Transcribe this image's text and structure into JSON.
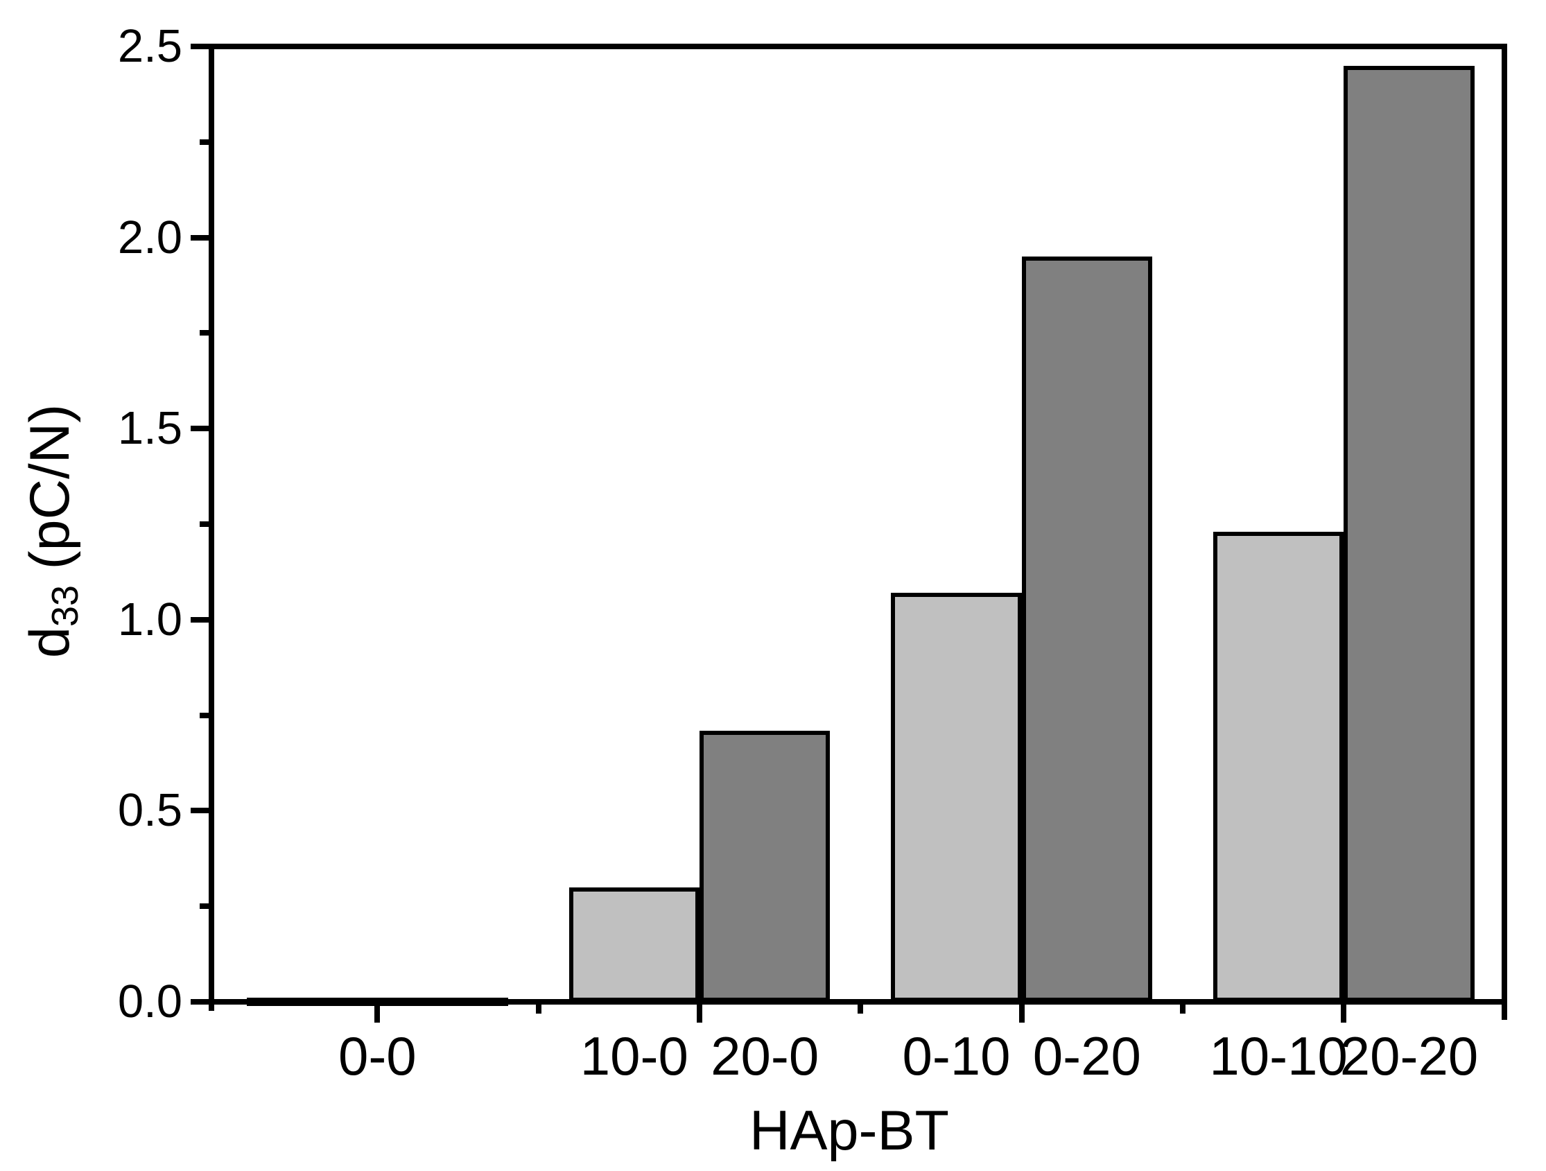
{
  "chart_data": {
    "type": "bar",
    "title": "",
    "xlabel": "HAp-BT",
    "ylabel": "d33 (pC/N)",
    "ylabel_parts": {
      "base": "d",
      "subscript": "33",
      "unit": " (pC/N)"
    },
    "ylim": [
      0,
      2.5
    ],
    "y_tick_labels": [
      "0.0",
      "0.5",
      "1.0",
      "1.5",
      "2.0",
      "2.5"
    ],
    "y_tick_values": [
      0,
      0.5,
      1,
      1.5,
      2,
      2.5
    ],
    "y_minor_tick_values": [
      0.25,
      0.75,
      1.25,
      1.75,
      2.25
    ],
    "categories": [
      "0-0",
      "10-0",
      "20-0",
      "0-10",
      "0-20",
      "10-10",
      "20-20"
    ],
    "bars": [
      {
        "label": "0-0",
        "shade": "light",
        "value": 0.01
      },
      {
        "label": "0-0",
        "shade": "dark",
        "value": 0.01
      },
      {
        "label": "10-0",
        "shade": "light",
        "value": 0.3
      },
      {
        "label": "20-0",
        "shade": "dark",
        "value": 0.71
      },
      {
        "label": "0-10",
        "shade": "light",
        "value": 1.07
      },
      {
        "label": "0-20",
        "shade": "dark",
        "value": 1.95
      },
      {
        "label": "10-10",
        "shade": "light",
        "value": 1.23
      },
      {
        "label": "20-20",
        "shade": "dark",
        "value": 2.45
      }
    ],
    "series": [
      {
        "name": "light-gray",
        "color": "#c0c0c0",
        "values": [
          0.01,
          0.3,
          1.07,
          1.23
        ]
      },
      {
        "name": "dark-gray",
        "color": "#808080",
        "values": [
          0.01,
          0.71,
          1.95,
          2.45
        ]
      }
    ],
    "colors": {
      "light": "#c0c0c0",
      "dark": "#808080",
      "outline": "#000000",
      "axis": "#000000",
      "background": "#ffffff",
      "text": "#000000"
    },
    "grid": false,
    "legend": null
  }
}
